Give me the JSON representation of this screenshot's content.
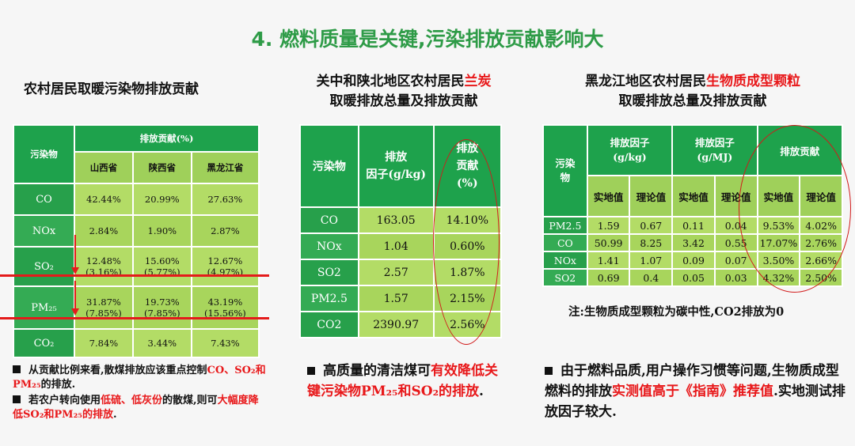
{
  "title": "4. 燃料质量是关键,污染排放贡献影响大",
  "left": {
    "heading": "农村居民取暖污染物排放贡献",
    "table": {
      "col_pollutant": "污染物",
      "col_group": "排放贡献(%)",
      "provinces": [
        "山西省",
        "陕西省",
        "黑龙江省"
      ],
      "rows": [
        {
          "name": "CO",
          "v": [
            "42.44%",
            "20.99%",
            "27.63%"
          ],
          "p": [
            "",
            "",
            ""
          ]
        },
        {
          "name": "NOx",
          "v": [
            "2.84%",
            "1.90%",
            "2.87%"
          ],
          "p": [
            "",
            "",
            ""
          ]
        },
        {
          "name": "SO₂",
          "v": [
            "12.48%",
            "15.60%",
            "12.67%"
          ],
          "p": [
            "(3.16%)",
            "(5.77%)",
            "(4.97%)"
          ]
        },
        {
          "name": "PM₂₅",
          "v": [
            "31.87%",
            "19.73%",
            "43.19%"
          ],
          "p": [
            "(7.85%)",
            "(7.85%)",
            "(15.56%)"
          ]
        },
        {
          "name": "CO₂",
          "v": [
            "7.84%",
            "3.44%",
            "7.43%"
          ],
          "p": [
            "",
            "",
            ""
          ]
        }
      ]
    },
    "bullets": [
      {
        "parts": [
          {
            "t": "从贡献比例来看,散煤排放应该重点控制",
            "red": false
          },
          {
            "t": "CO、SO₂和PM₂₅",
            "red": true
          },
          {
            "t": "的排放.",
            "red": false
          }
        ]
      },
      {
        "parts": [
          {
            "t": "若农户转向使用",
            "red": false
          },
          {
            "t": "低硫、低灰份",
            "red": true
          },
          {
            "t": "的散煤,则可",
            "red": false
          },
          {
            "t": "大幅度降低SO₂和PM₂₅的排放",
            "red": true
          },
          {
            "t": ".",
            "red": false
          }
        ]
      }
    ]
  },
  "mid": {
    "heading_line1_a": "关中和陕北地区农村居民",
    "heading_line1_red": "兰炭",
    "heading_line2": "取暖排放总量及排放贡献",
    "table": {
      "h_pollutant": "污染物",
      "h_factor": "排放\n因子(g/kg)",
      "h_contrib": "排放\n贡献\n(%)",
      "rows": [
        {
          "name": "CO",
          "factor": "163.05",
          "contrib": "14.10%"
        },
        {
          "name": "NOx",
          "factor": "1.04",
          "contrib": "0.60%"
        },
        {
          "name": "SO2",
          "factor": "2.57",
          "contrib": "1.87%"
        },
        {
          "name": "PM2.5",
          "factor": "1.57",
          "contrib": "2.15%"
        },
        {
          "name": "CO2",
          "factor": "2390.97",
          "contrib": "2.56%"
        }
      ]
    },
    "bullet_a": "高质量的清洁煤可",
    "bullet_red": "有效降低关键污染物PM₂₅和SO₂的排放",
    "bullet_b": "."
  },
  "right": {
    "heading_line1_a": "黑龙江地区农村居民",
    "heading_line1_red": "生物质成型颗粒",
    "heading_line2": "取暖排放总量及排放贡献",
    "table": {
      "h_pollutant": "污染物",
      "h_factor_kg": "排放因子\n(g/kg)",
      "h_factor_mj": "排放因子\n(g/MJ)",
      "h_contrib": "排放贡献",
      "sub": [
        "实地值",
        "理论值",
        "实地值",
        "理论值",
        "实地值",
        "理论值"
      ],
      "rows": [
        {
          "name": "PM2.5",
          "v": [
            "1.59",
            "0.67",
            "0.11",
            "0.04",
            "9.53%",
            "4.02%"
          ]
        },
        {
          "name": "CO",
          "v": [
            "50.99",
            "8.25",
            "3.42",
            "0.55",
            "17.07%",
            "2.76%"
          ]
        },
        {
          "name": "NOx",
          "v": [
            "1.41",
            "1.07",
            "0.09",
            "0.07",
            "3.50%",
            "2.66%"
          ]
        },
        {
          "name": "SO2",
          "v": [
            "0.69",
            "0.4",
            "0.05",
            "0.03",
            "4.32%",
            "2.50%"
          ]
        }
      ]
    },
    "note": "注:生物质成型颗粒为碳中性,CO2排放为0",
    "bullet_a": "由于燃料品质,用户操作习惯等问题,生物质成型燃料的排放",
    "bullet_red": "实测值高于《指南》推荐值",
    "bullet_b": ".实地测试排放因子较大."
  }
}
